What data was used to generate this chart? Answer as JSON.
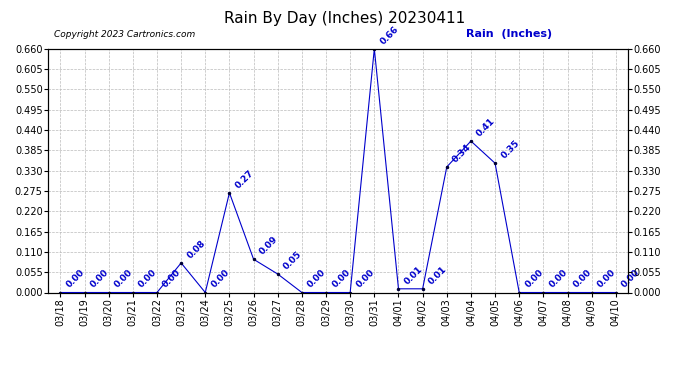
{
  "title": "Rain By Day (Inches) 20230411",
  "copyright_text": "Copyright 2023 Cartronics.com",
  "legend_label": "Rain  (Inches)",
  "dates": [
    "03/18",
    "03/19",
    "03/20",
    "03/21",
    "03/22",
    "03/23",
    "03/24",
    "03/25",
    "03/26",
    "03/27",
    "03/28",
    "03/29",
    "03/30",
    "03/31",
    "04/01",
    "04/02",
    "04/03",
    "04/04",
    "04/05",
    "04/06",
    "04/07",
    "04/08",
    "04/09",
    "04/10"
  ],
  "values": [
    0.0,
    0.0,
    0.0,
    0.0,
    0.0,
    0.08,
    0.0,
    0.27,
    0.09,
    0.05,
    0.0,
    0.0,
    0.0,
    0.66,
    0.01,
    0.01,
    0.34,
    0.41,
    0.35,
    0.0,
    0.0,
    0.0,
    0.0,
    0.0
  ],
  "line_color": "#0000cc",
  "marker_color": "#000033",
  "label_color": "#0000cc",
  "grid_color": "#bbbbbb",
  "background_color": "#ffffff",
  "ylim": [
    0.0,
    0.66
  ],
  "yticks": [
    0.0,
    0.055,
    0.11,
    0.165,
    0.22,
    0.275,
    0.33,
    0.385,
    0.44,
    0.495,
    0.55,
    0.605,
    0.66
  ],
  "title_fontsize": 11,
  "tick_fontsize": 7,
  "annotation_fontsize": 6.5,
  "copyright_fontsize": 6.5,
  "legend_fontsize": 8
}
